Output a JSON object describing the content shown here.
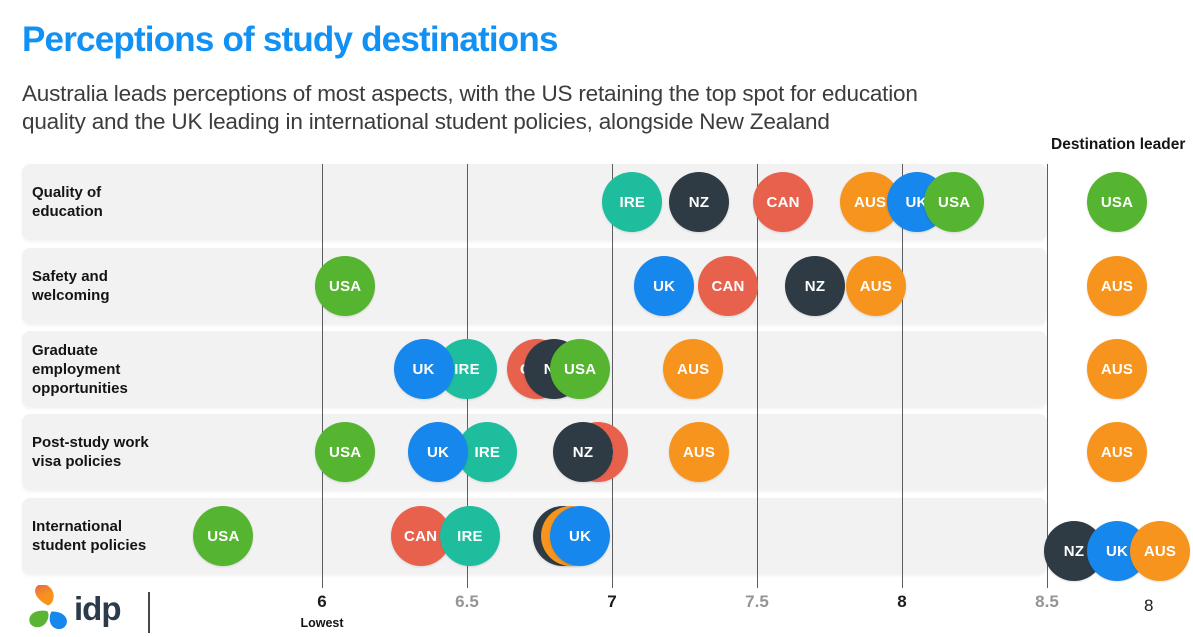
{
  "page": {
    "title": "Perceptions of study destinations",
    "subtitle": "Australia leads perceptions of most aspects, with the US retaining the top spot for education\nquality and the UK leading in international student policies, alongside New Zealand",
    "page_number": "8",
    "logo_text": "idp",
    "title_color": "#1191f4"
  },
  "chart_data": {
    "type": "scatter",
    "title": "Perceptions of study destinations",
    "leader_header": "Destination leader",
    "x_axis": {
      "min": 6,
      "max": 8.5,
      "lowest_annotation": "Lowest",
      "ticks": [
        {
          "value": 6,
          "label": "6",
          "emphasis": true
        },
        {
          "value": 6.5,
          "label": "6.5",
          "emphasis": false
        },
        {
          "value": 7,
          "label": "7",
          "emphasis": true
        },
        {
          "value": 7.5,
          "label": "7.5",
          "emphasis": false
        },
        {
          "value": 8,
          "label": "8",
          "emphasis": true
        },
        {
          "value": 8.5,
          "label": "8.5",
          "emphasis": false
        }
      ]
    },
    "destination_colors": {
      "USA": "#55b430",
      "AUS": "#f7941d",
      "CAN": "#e8614d",
      "UK": "#1687ec",
      "NZ": "#2e3b44",
      "IRE": "#1dbd9e"
    },
    "rows": [
      {
        "category": "Quality of\neducation",
        "points": [
          {
            "dest": "IRE",
            "value": 7.07
          },
          {
            "dest": "NZ",
            "value": 7.3
          },
          {
            "dest": "CAN",
            "value": 7.59
          },
          {
            "dest": "AUS",
            "value": 7.89
          },
          {
            "dest": "UK",
            "value": 8.05
          },
          {
            "dest": "USA",
            "value": 8.18
          }
        ],
        "leaders": [
          "USA"
        ]
      },
      {
        "category": "Safety and\nwelcoming",
        "points": [
          {
            "dest": "USA",
            "value": 6.08
          },
          {
            "dest": "UK",
            "value": 7.18
          },
          {
            "dest": "CAN",
            "value": 7.4
          },
          {
            "dest": "NZ",
            "value": 7.7
          },
          {
            "dest": "AUS",
            "value": 7.91
          }
        ],
        "leaders": [
          "AUS"
        ]
      },
      {
        "category": "Graduate\nemployment\nopportunities",
        "points": [
          {
            "dest": "IRE",
            "value": 6.5
          },
          {
            "dest": "UK",
            "value": 6.35
          },
          {
            "dest": "CAN",
            "value": 6.74
          },
          {
            "dest": "NZ",
            "value": 6.8
          },
          {
            "dest": "USA",
            "value": 6.89
          },
          {
            "dest": "AUS",
            "value": 7.28
          }
        ],
        "leaders": [
          "AUS"
        ]
      },
      {
        "category": "Post-study work\nvisa policies",
        "points": [
          {
            "dest": "USA",
            "value": 6.08
          },
          {
            "dest": "IRE",
            "value": 6.57
          },
          {
            "dest": "UK",
            "value": 6.4
          },
          {
            "dest": "CAN",
            "value": 6.95
          },
          {
            "dest": "NZ",
            "value": 6.9
          },
          {
            "dest": "AUS",
            "value": 7.3
          }
        ],
        "leaders": [
          "AUS"
        ]
      },
      {
        "category": "International\nstudent policies",
        "points": [
          {
            "dest": "USA",
            "value": 5.66
          },
          {
            "dest": "CAN",
            "value": 6.34
          },
          {
            "dest": "IRE",
            "value": 6.51
          },
          {
            "dest": "NZ",
            "value": 6.83
          },
          {
            "dest": "AUS",
            "value": 6.86
          },
          {
            "dest": "UK",
            "value": 6.89
          }
        ],
        "leaders": [
          "NZ",
          "UK",
          "AUS"
        ]
      }
    ]
  }
}
